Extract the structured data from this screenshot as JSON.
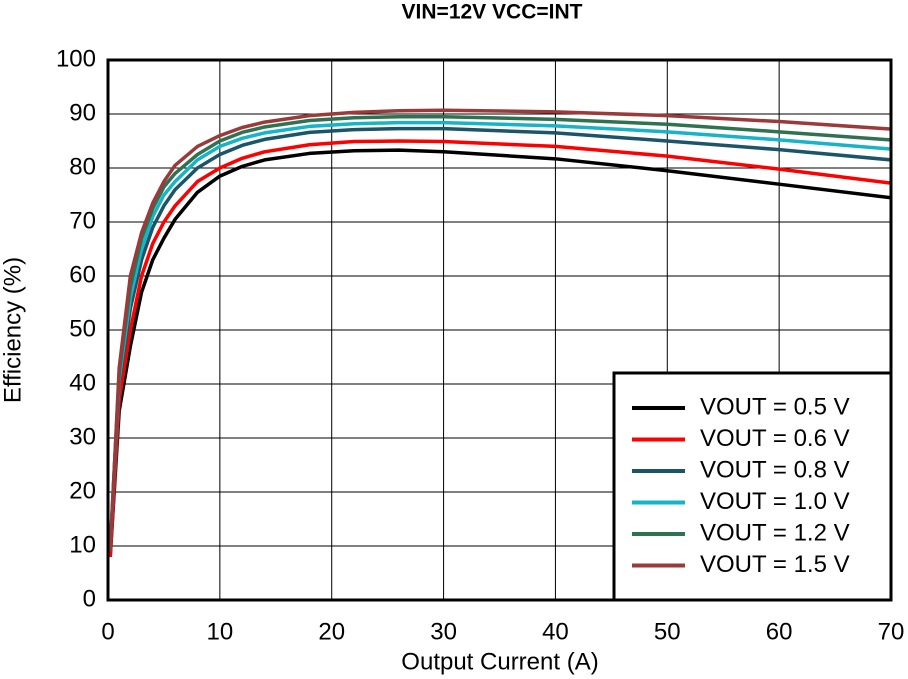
{
  "chart_data": {
    "type": "line",
    "title": "VIN=12V VCC=INT",
    "x_label": "Output Current (A)",
    "y_label": "Efficiency (%)",
    "x": [
      0.2,
      1,
      2,
      3,
      4,
      5,
      6,
      8,
      10,
      12,
      14,
      18,
      22,
      26,
      30,
      40,
      50,
      60,
      70
    ],
    "series": [
      {
        "name": "VOUT = 0.5 V",
        "color": "#000000",
        "values": [
          8,
          35,
          47,
          57,
          63,
          67,
          70.5,
          75.5,
          78.5,
          80.3,
          81.5,
          82.7,
          83.2,
          83.3,
          83,
          81.7,
          79.5,
          77,
          74.5
        ]
      },
      {
        "name": "VOUT = 0.6 V",
        "color": "#ff0000",
        "values": [
          8,
          37,
          50,
          60,
          66,
          70,
          73,
          77.5,
          80,
          81.8,
          83,
          84.3,
          84.9,
          85,
          84.9,
          84,
          82.2,
          79.8,
          77.2
        ]
      },
      {
        "name": "VOUT = 0.8 V",
        "color": "#1c5468",
        "values": [
          9,
          40,
          54,
          63,
          69,
          73,
          76,
          80,
          82.5,
          84.2,
          85.3,
          86.6,
          87.1,
          87.3,
          87.3,
          86.5,
          85,
          83.4,
          81.5
        ]
      },
      {
        "name": "VOUT = 1.0 V",
        "color": "#17b3c7",
        "values": [
          10,
          41,
          56,
          65,
          71,
          75,
          77.5,
          81.5,
          84,
          85.5,
          86.5,
          87.7,
          88.2,
          88.4,
          88.4,
          87.8,
          86.7,
          85.2,
          83.5
        ]
      },
      {
        "name": "VOUT = 1.2 V",
        "color": "#2f7251",
        "values": [
          9.5,
          42,
          58,
          67,
          72.5,
          76.5,
          79,
          82.5,
          85,
          86.6,
          87.6,
          88.8,
          89.3,
          89.5,
          89.5,
          89,
          88.1,
          86.7,
          85.2
        ]
      },
      {
        "name": "VOUT = 1.5 V",
        "color": "#9b3a3a",
        "values": [
          9,
          43,
          60,
          68,
          73.5,
          77.5,
          80.5,
          84,
          86,
          87.5,
          88.5,
          89.7,
          90.3,
          90.6,
          90.7,
          90.4,
          89.7,
          88.6,
          87.2
        ]
      }
    ],
    "xlim": [
      0,
      70
    ],
    "xticks": [
      0,
      10,
      20,
      30,
      40,
      50,
      60,
      70
    ],
    "ylim": [
      0,
      100
    ],
    "yticks": [
      0,
      10,
      20,
      30,
      40,
      50,
      60,
      70,
      80,
      90,
      100
    ],
    "grid": true,
    "legend": "lower right"
  }
}
